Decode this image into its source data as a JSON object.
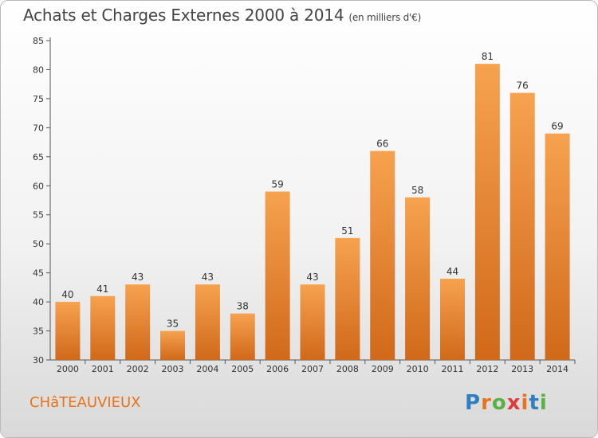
{
  "header": {
    "title": "Achats et Charges Externes 2000 à 2014",
    "subtitle": "(en milliers d'€)"
  },
  "commune": "CHâTEAUVIEUX",
  "logo": {
    "letters": [
      "P",
      "r",
      "o",
      "x",
      "i",
      "t",
      "i"
    ],
    "colors": [
      "#2f7fc1",
      "#e8731b",
      "#5bb043",
      "#e03a3a",
      "#e8731b",
      "#2f7fc1",
      "#5bb043"
    ]
  },
  "chart_data": {
    "type": "bar",
    "title": "Achats et Charges Externes 2000 à 2014",
    "subtitle": "(en milliers d'€)",
    "categories": [
      "2000",
      "2001",
      "2002",
      "2003",
      "2004",
      "2005",
      "2006",
      "2007",
      "2008",
      "2009",
      "2010",
      "2011",
      "2012",
      "2013",
      "2014"
    ],
    "values": [
      40,
      41,
      43,
      35,
      43,
      38,
      59,
      43,
      51,
      66,
      58,
      44,
      81,
      76,
      69
    ],
    "ylim": [
      30,
      85
    ],
    "yticks": [
      30,
      35,
      40,
      45,
      50,
      55,
      60,
      65,
      70,
      75,
      80,
      85
    ],
    "grid": false,
    "bar_color_top": "#f6a24f",
    "bar_color_bottom": "#d0691a"
  }
}
